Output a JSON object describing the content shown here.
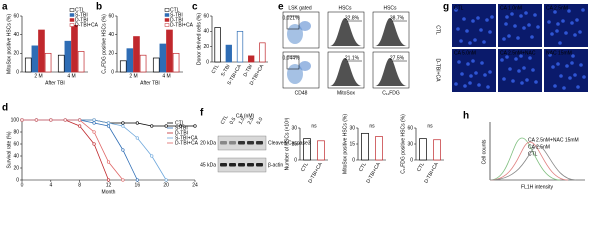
{
  "panel_labels": [
    "a",
    "b",
    "c",
    "d",
    "e",
    "f",
    "g",
    "h"
  ],
  "chart_data": [
    {
      "type": "bar",
      "ylabel": "MitoSox positive HSCs (%)",
      "xlabel": "After TBI",
      "categories": [
        "2 M",
        "4 M"
      ],
      "series": [
        {
          "name": "CTL",
          "color": "#ffffff",
          "edgecolor": "#000000",
          "values": [
            15,
            18
          ]
        },
        {
          "name": "S-TBI",
          "color": "#2e6db5",
          "edgecolor": "#2e6db5",
          "values": [
            28,
            33
          ]
        },
        {
          "name": "D-TBI",
          "color": "#c0282d",
          "edgecolor": "#c0282d",
          "values": [
            45,
            50
          ]
        },
        {
          "name": "D-TBI+CA",
          "color": "#ffffff",
          "edgecolor": "#c0282d",
          "values": [
            20,
            22
          ]
        }
      ],
      "ylim": [
        0,
        60
      ],
      "yticks": [
        0,
        20,
        40,
        60
      ],
      "legend": "upper right"
    },
    {
      "type": "bar",
      "ylabel": "C₁₁FDG positive HSCs (%)",
      "xlabel": "After TBI",
      "categories": [
        "2 M",
        "4 M"
      ],
      "series": [
        {
          "name": "CTL",
          "color": "#ffffff",
          "edgecolor": "#000000",
          "values": [
            12,
            15
          ]
        },
        {
          "name": "S-TBI",
          "color": "#2e6db5",
          "edgecolor": "#2e6db5",
          "values": [
            25,
            30
          ]
        },
        {
          "name": "D-TBI",
          "color": "#c0282d",
          "edgecolor": "#c0282d",
          "values": [
            38,
            45
          ]
        },
        {
          "name": "D-TBI+CA",
          "color": "#ffffff",
          "edgecolor": "#c0282d",
          "values": [
            18,
            20
          ]
        }
      ],
      "ylim": [
        0,
        60
      ],
      "yticks": [
        0,
        20,
        40,
        60
      ],
      "legend": "upper right"
    },
    {
      "type": "bar",
      "ylabel": "Donor derived cells (%)",
      "categories": [
        "CTL",
        "S-TBI",
        "S-TBI+CA",
        "D-TBI",
        "D-TBI+CA"
      ],
      "values": [
        45,
        22,
        40,
        8,
        25
      ],
      "colors": [
        "#ffffff",
        "#2e6db5",
        "#ffffff",
        "#c0282d",
        "#ffffff"
      ],
      "edgecolors": [
        "#000000",
        "#2e6db5",
        "#2e6db5",
        "#c0282d",
        "#c0282d"
      ],
      "ylim": [
        0,
        60
      ],
      "yticks": [
        0,
        20,
        40,
        60
      ]
    },
    {
      "type": "line",
      "ylabel": "Survival rate (%)",
      "xlabel": "Month",
      "x": [
        0,
        2,
        4,
        6,
        8,
        10,
        12,
        14,
        16,
        18,
        20,
        22,
        24
      ],
      "series": [
        {
          "name": "CTL",
          "color": "#000000",
          "values": [
            100,
            100,
            100,
            100,
            100,
            100,
            95,
            95,
            95,
            90,
            90,
            90,
            90
          ]
        },
        {
          "name": "S-TBI",
          "color": "#2e6db5",
          "values": [
            100,
            100,
            100,
            100,
            100,
            95,
            90,
            50,
            0,
            null,
            null,
            null,
            null
          ]
        },
        {
          "name": "D-TBI",
          "color": "#c0282d",
          "values": [
            100,
            100,
            100,
            100,
            90,
            60,
            0,
            null,
            null,
            null,
            null,
            null,
            null
          ]
        },
        {
          "name": "S-TBI+CA",
          "color": "#6fa8dc",
          "values": [
            100,
            100,
            100,
            100,
            100,
            100,
            95,
            90,
            70,
            40,
            0,
            null,
            null
          ]
        },
        {
          "name": "D-TBI+CA",
          "color": "#e06666",
          "values": [
            100,
            100,
            100,
            100,
            100,
            80,
            30,
            0,
            null,
            null,
            null,
            null,
            null
          ]
        }
      ],
      "xlim": [
        0,
        24
      ],
      "xticks": [
        0,
        4,
        8,
        12,
        16,
        20,
        24
      ],
      "ylim": [
        0,
        100
      ],
      "yticks": [
        0,
        20,
        40,
        60,
        80,
        100
      ],
      "legend": "upper right"
    },
    {
      "type": "bar",
      "ylabel": "Number of HSCs (×10³)",
      "categories": [
        "CTL",
        "D-TBI+CA"
      ],
      "values": [
        20,
        18
      ],
      "colors": [
        "#ffffff",
        "#ffffff"
      ],
      "edgecolors": [
        "#000000",
        "#c0282d"
      ],
      "ylim": [
        0,
        30
      ],
      "yticks": [
        0,
        15,
        30
      ],
      "annotation": "ns"
    },
    {
      "type": "bar",
      "ylabel": "MitoSox positive HSCs (%)",
      "categories": [
        "CTL",
        "D-TBI+CA"
      ],
      "values": [
        25,
        22
      ],
      "colors": [
        "#ffffff",
        "#ffffff"
      ],
      "edgecolors": [
        "#000000",
        "#c0282d"
      ],
      "ylim": [
        0,
        30
      ],
      "yticks": [
        0,
        15,
        30
      ],
      "annotation": "ns"
    },
    {
      "type": "bar",
      "ylabel": "C₁₁FDG positive HSCs (%)",
      "categories": [
        "CTL",
        "D-TBI+CA"
      ],
      "values": [
        40,
        38
      ],
      "colors": [
        "#ffffff",
        "#ffffff"
      ],
      "edgecolors": [
        "#000000",
        "#c0282d"
      ],
      "ylim": [
        0,
        60
      ],
      "yticks": [
        0,
        30,
        60
      ],
      "annotation": "ns"
    }
  ],
  "flow": {
    "columns": [
      "LSK gated",
      "HSCs",
      "HSCs"
    ],
    "rows": [
      "CTL",
      "D-TBI+CA"
    ],
    "axes": [
      "CD48",
      "MitoSox",
      "C₁₁FDG"
    ],
    "percents": [
      [
        "0.021%",
        "32.8%",
        "38.7%"
      ],
      [
        "0.044%",
        "21.1%",
        "27.5%"
      ]
    ]
  },
  "blot": {
    "title": "CA (nM)",
    "lanes": [
      "CTL",
      "0.5",
      "1.0",
      "2.5",
      "5.0"
    ],
    "sizes": [
      "20 kDa",
      "45 kDa"
    ],
    "bands": [
      "Cleaved-Caspase3",
      "β-actin"
    ]
  },
  "microscopy": {
    "tiles": [
      "CTL",
      "CA 1.0nM",
      "CA 2.5nM",
      "CA 5.0nM",
      "CA 2.5nM+NAC",
      "NAC 15mM"
    ]
  },
  "histogram": {
    "ylabel": "Cell counts",
    "xlabel": "FL1H intensity",
    "legend": [
      "CA 2.5nM+NAC 15mM",
      "CA 2.5nM",
      "CTL"
    ],
    "colors": [
      "#7fbf7f",
      "#e08080",
      "#888888"
    ]
  }
}
